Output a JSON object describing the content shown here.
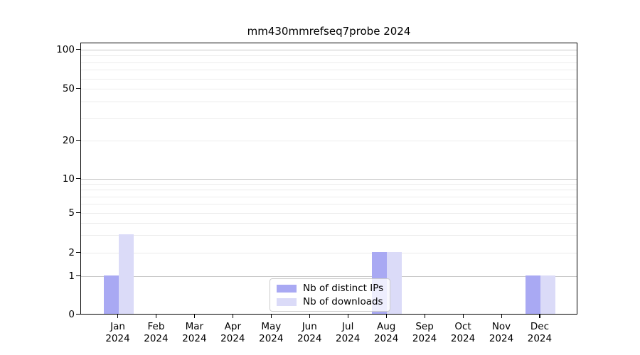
{
  "title": "mm430mmrefseq7probe 2024",
  "chart_data": {
    "type": "bar",
    "title": "mm430mmrefseq7probe 2024",
    "categories": [
      "Jan 2024",
      "Feb 2024",
      "Mar 2024",
      "Apr 2024",
      "May 2024",
      "Jun 2024",
      "Jul 2024",
      "Aug 2024",
      "Sep 2024",
      "Oct 2024",
      "Nov 2024",
      "Dec 2024"
    ],
    "series": [
      {
        "name": "Nb of distinct IPs",
        "color": "#a9a9f3",
        "values": [
          1,
          0,
          0,
          0,
          0,
          0,
          0,
          2,
          0,
          0,
          0,
          1
        ]
      },
      {
        "name": "Nb of downloads",
        "color": "#dbdbf8",
        "values": [
          3,
          0,
          0,
          0,
          0,
          0,
          0,
          2,
          0,
          0,
          0,
          1
        ]
      }
    ],
    "xlabel": "",
    "ylabel": "",
    "yticks": [
      0,
      1,
      2,
      5,
      10,
      20,
      50,
      100
    ],
    "ylim": [
      0,
      130
    ],
    "yscale": "log-like",
    "grid": "horizontal major+minor",
    "legend_position": "inside bottom-center",
    "colors": {
      "distinct_ips": "#a9a9f3",
      "downloads": "#dbdbf8",
      "grid_major": "#c8c8c8",
      "grid_minor": "#ececec",
      "spine": "#000000",
      "background": "#ffffff"
    }
  },
  "legend": {
    "items": [
      {
        "label": "Nb of distinct IPs"
      },
      {
        "label": "Nb of downloads"
      }
    ]
  }
}
